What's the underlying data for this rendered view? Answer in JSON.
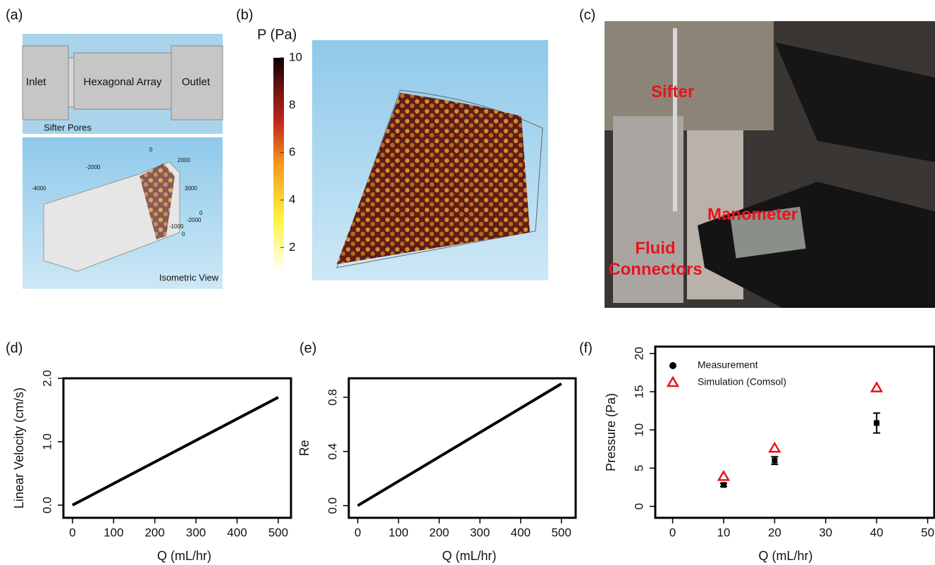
{
  "figure": {
    "labels": [
      "(a)",
      "(b)",
      "(c)",
      "(d)",
      "(e)",
      "(f)"
    ],
    "schematic": {
      "inlet": "Inlet",
      "array": "Hexagonal Array",
      "outlet": "Outlet",
      "pores": "Sifter Pores",
      "view": "Isometric View",
      "coords": [
        "-4000",
        "-2000",
        "0",
        "2000",
        "3000",
        "0",
        "-2000",
        "-1000",
        "0"
      ]
    },
    "colorbar": {
      "title": "P (Pa)",
      "lim": [
        1,
        10
      ],
      "ticks": [
        2,
        4,
        6,
        8,
        10
      ]
    },
    "photo": {
      "labels": [
        "Sifter",
        "Manometer",
        "Fluid Connectors"
      ]
    }
  },
  "chart_data": [
    {
      "type": "line",
      "xlabel": "Q (mL/hr)",
      "ylabel": "Linear Velocity (cm/s)",
      "color": "#000000",
      "x": [
        0,
        500
      ],
      "values": [
        0,
        1.7
      ],
      "xlim": [
        -22,
        531
      ],
      "ylim": [
        -0.2,
        2.0
      ],
      "xticks": [
        0,
        100,
        200,
        300,
        400,
        500
      ],
      "yticks": [
        {
          "value": 0,
          "label": "0.0"
        },
        {
          "value": 1,
          "label": "1.0"
        },
        {
          "value": 2,
          "label": "2.0"
        }
      ]
    },
    {
      "type": "line",
      "xlabel": "Q (mL/hr)",
      "ylabel": "Re",
      "color": "#000000",
      "x": [
        0,
        500
      ],
      "values": [
        0,
        0.9
      ],
      "xlim": [
        -22,
        535
      ],
      "ylim": [
        -0.09,
        0.94
      ],
      "xticks": [
        0,
        100,
        200,
        300,
        400,
        500
      ],
      "yticks": [
        {
          "value": 0,
          "label": "0.0"
        },
        {
          "value": 0.4,
          "label": "0.4"
        },
        {
          "value": 0.8,
          "label": "0.8"
        }
      ]
    },
    {
      "type": "scatter",
      "xlabel": "Q (mL/hr)",
      "ylabel": "Pressure (Pa)",
      "x": [
        10,
        20,
        40
      ],
      "series": [
        {
          "name": "Measurement",
          "color": "#000000",
          "values": [
            2.8,
            6.0,
            10.9
          ],
          "errors": [
            0.2,
            0.5,
            1.3
          ]
        },
        {
          "name": "Simulation (Comsol)",
          "color": "#e8141c",
          "values": [
            3.9,
            7.6,
            15.5
          ]
        }
      ],
      "xlim": [
        -3.4,
        51.3
      ],
      "ylim": [
        -1.5,
        20.9
      ],
      "xticks": [
        0,
        10,
        20,
        30,
        40,
        50
      ],
      "yticks": [
        0,
        5,
        10,
        15,
        20
      ],
      "legend": "top-left"
    }
  ]
}
